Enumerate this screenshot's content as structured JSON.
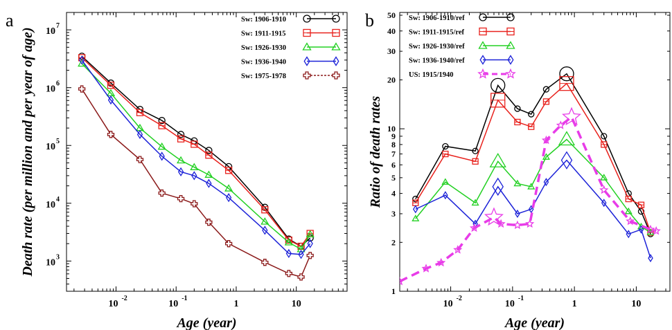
{
  "chart_data": [
    {
      "panel": "a",
      "type": "line",
      "xlabel": "Age (year)",
      "ylabel": "Death rate (per million and per year of age)",
      "xscale": "log",
      "yscale": "log",
      "xlim": [
        0.0015,
        70
      ],
      "ylim": [
        300,
        20000000
      ],
      "grid": false,
      "legend_position": "top-right",
      "xticks": [
        {
          "value": 0.01,
          "base": "10",
          "exp": "-2"
        },
        {
          "value": 0.1,
          "base": "10",
          "exp": "-1"
        },
        {
          "value": 1,
          "base": "1",
          "exp": ""
        },
        {
          "value": 10,
          "base": "10",
          "exp": ""
        }
      ],
      "yticks": [
        {
          "value": 1000,
          "base": "10",
          "exp": "3"
        },
        {
          "value": 10000,
          "base": "10",
          "exp": "4"
        },
        {
          "value": 100000,
          "base": "10",
          "exp": "5"
        },
        {
          "value": 1000000,
          "base": "10",
          "exp": "6"
        },
        {
          "value": 10000000,
          "base": "10",
          "exp": "7"
        }
      ],
      "series": [
        {
          "name": "Sw: 1906-1910",
          "color": "#000000",
          "marker": "circle",
          "dashed": false,
          "x": [
            0.0027,
            0.0082,
            0.025,
            0.058,
            0.12,
            0.2,
            0.35,
            0.75,
            3,
            7.5,
            12,
            17
          ],
          "y": [
            3500000,
            1200000,
            420000,
            270000,
            155000,
            120000,
            82000,
            43000,
            8500,
            2400,
            1800,
            2500
          ],
          "large_markers": []
        },
        {
          "name": "Sw: 1911-1915",
          "color": "#e8211c",
          "marker": "square",
          "dashed": false,
          "x": [
            0.0027,
            0.0082,
            0.025,
            0.058,
            0.12,
            0.2,
            0.35,
            0.75,
            3,
            7.5,
            12,
            17
          ],
          "y": [
            3300000,
            1100000,
            370000,
            220000,
            130000,
            105000,
            68000,
            37000,
            7700,
            2300,
            1800,
            3000
          ],
          "large_markers": []
        },
        {
          "name": "Sw: 1926-1930",
          "color": "#22d022",
          "marker": "triangle",
          "dashed": false,
          "x": [
            0.0027,
            0.0082,
            0.025,
            0.058,
            0.12,
            0.2,
            0.35,
            0.75,
            3,
            7.5,
            12,
            17
          ],
          "y": [
            2600000,
            800000,
            200000,
            95000,
            55000,
            42000,
            31000,
            18000,
            4800,
            2100,
            1600,
            2900
          ],
          "large_markers": []
        },
        {
          "name": "Sw: 1936-1940",
          "color": "#1c22d8",
          "marker": "diamond",
          "dashed": false,
          "x": [
            0.0027,
            0.0082,
            0.025,
            0.058,
            0.12,
            0.2,
            0.35,
            0.75,
            3,
            7.5,
            12,
            17
          ],
          "y": [
            3000000,
            610000,
            155000,
            65000,
            35000,
            30000,
            22000,
            12500,
            3400,
            1350,
            1300,
            2000
          ],
          "large_markers": []
        },
        {
          "name": "Sw: 1975-1978",
          "color": "#8b1a1a",
          "marker": "cross",
          "dashed": true,
          "x": [
            0.0027,
            0.0082,
            0.025,
            0.058,
            0.12,
            0.2,
            0.35,
            0.75,
            3,
            7.5,
            12,
            17
          ],
          "y": [
            950000,
            155000,
            57000,
            15000,
            12000,
            9800,
            4700,
            2000,
            950,
            610,
            530,
            1250
          ],
          "large_markers": []
        }
      ]
    },
    {
      "panel": "b",
      "type": "line",
      "xlabel": "Age (year)",
      "ylabel": "Ratio of death rates",
      "xscale": "log",
      "yscale": "log",
      "xlim": [
        0.0015,
        35
      ],
      "ylim": [
        1,
        52
      ],
      "grid": false,
      "legend_position": "top-left",
      "xticks": [
        {
          "value": 0.01,
          "base": "10",
          "exp": "-2"
        },
        {
          "value": 0.1,
          "base": "10",
          "exp": "-1"
        },
        {
          "value": 1,
          "base": "1",
          "exp": ""
        },
        {
          "value": 10,
          "base": "10",
          "exp": ""
        }
      ],
      "yticks": [
        {
          "value": 1,
          "base": "1",
          "exp": ""
        },
        {
          "value": 2,
          "base": "2",
          "exp": ""
        },
        {
          "value": 3,
          "base": "3",
          "exp": ""
        },
        {
          "value": 4,
          "base": "4",
          "exp": ""
        },
        {
          "value": 5,
          "base": "5",
          "exp": ""
        },
        {
          "value": 6,
          "base": "6",
          "exp": ""
        },
        {
          "value": 7,
          "base": "7",
          "exp": ""
        },
        {
          "value": 8,
          "base": "8",
          "exp": ""
        },
        {
          "value": 9,
          "base": "9",
          "exp": ""
        },
        {
          "value": 10,
          "base": "10",
          "exp": ""
        },
        {
          "value": 20,
          "base": "20",
          "exp": ""
        },
        {
          "value": 30,
          "base": "30",
          "exp": ""
        },
        {
          "value": 40,
          "base": "40",
          "exp": ""
        },
        {
          "value": 50,
          "base": "50",
          "exp": ""
        }
      ],
      "series": [
        {
          "name": "Sw: 1906-1910/ref",
          "color": "#000000",
          "marker": "circle",
          "dashed": false,
          "x": [
            0.0027,
            0.0082,
            0.025,
            0.058,
            0.12,
            0.2,
            0.35,
            0.75,
            3,
            7.5,
            12,
            17
          ],
          "y": [
            3.7,
            7.8,
            7.3,
            18.5,
            13.3,
            12.3,
            17.5,
            21.8,
            9,
            4,
            3.1,
            2.25
          ],
          "large_markers": [
            3,
            7
          ]
        },
        {
          "name": "Sw: 1911-1915/ref",
          "color": "#e8211c",
          "marker": "square",
          "dashed": false,
          "x": [
            0.0027,
            0.0082,
            0.025,
            0.058,
            0.12,
            0.2,
            0.35,
            0.75,
            3,
            7.5,
            12,
            17
          ],
          "y": [
            3.5,
            7,
            6.3,
            15,
            11,
            10.3,
            14.7,
            19,
            8,
            3.7,
            3.4,
            2.3
          ],
          "large_markers": [
            3,
            7
          ]
        },
        {
          "name": "Sw: 1926-1930/ref",
          "color": "#22d022",
          "marker": "triangle",
          "dashed": false,
          "x": [
            0.0027,
            0.0082,
            0.025,
            0.058,
            0.12,
            0.2,
            0.35,
            0.75,
            3,
            7.5,
            12,
            17
          ],
          "y": [
            2.8,
            4.7,
            3.5,
            6.3,
            4.6,
            4.4,
            6.7,
            8.6,
            5,
            3.1,
            2.5,
            2.3
          ],
          "large_markers": [
            3,
            7
          ]
        },
        {
          "name": "Sw: 1936-1940/ref",
          "color": "#1c22d8",
          "marker": "diamond",
          "dashed": false,
          "x": [
            0.0027,
            0.0082,
            0.025,
            0.058,
            0.12,
            0.2,
            0.35,
            0.75,
            3,
            7.5,
            12,
            17
          ],
          "y": [
            3.2,
            3.9,
            2.6,
            4.4,
            3,
            3.2,
            4.7,
            6.4,
            3.5,
            2.25,
            2.4,
            1.6
          ],
          "large_markers": [
            3,
            7
          ]
        },
        {
          "name": "US: 1915/1940",
          "color": "#e83ce8",
          "marker": "star",
          "dashed": true,
          "x": [
            0.0015,
            0.004,
            0.007,
            0.013,
            0.024,
            0.05,
            0.065,
            0.12,
            0.19,
            0.35,
            0.6,
            0.9,
            3,
            8,
            17,
            21
          ],
          "y": [
            1.15,
            1.38,
            1.5,
            1.8,
            2.45,
            2.85,
            2.6,
            2.55,
            2.6,
            8.5,
            10.5,
            11.8,
            4.2,
            2.7,
            2.4,
            2.35
          ],
          "large_markers": [
            5,
            11
          ]
        }
      ]
    }
  ],
  "figure": {
    "panel_labels": [
      "a",
      "b"
    ]
  }
}
